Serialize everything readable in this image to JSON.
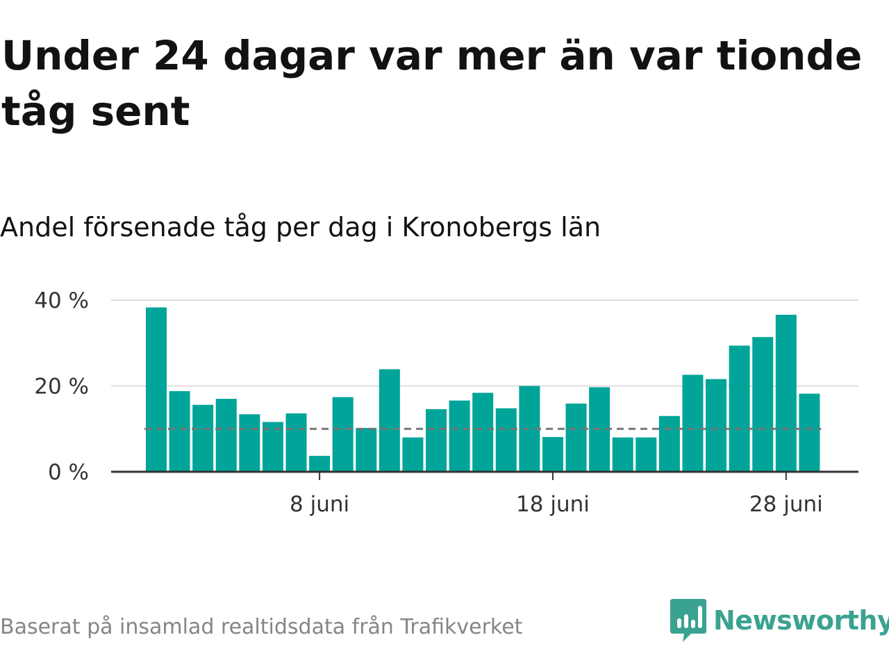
{
  "title": "Under 24 dagar var mer än var tionde tåg sent",
  "subtitle": "Andel försenade tåg per dag i Kronobergs län",
  "footer": {
    "source": "Baserat på insamlad realtidsdata från Trafikverket",
    "logo_text": "Newsworthy",
    "logo_icon": "bar-chart-speech-bubble-icon"
  },
  "colors": {
    "bar": "#00a499",
    "reference_line": "#777777",
    "gridline": "#dddddd",
    "axis": "#333333",
    "logo": "#3aa290"
  },
  "chart_data": {
    "type": "bar",
    "x": [
      "2024-06-01",
      "2024-06-02",
      "2024-06-03",
      "2024-06-04",
      "2024-06-05",
      "2024-06-06",
      "2024-06-07",
      "2024-06-08",
      "2024-06-09",
      "2024-06-10",
      "2024-06-11",
      "2024-06-12",
      "2024-06-13",
      "2024-06-14",
      "2024-06-15",
      "2024-06-16",
      "2024-06-17",
      "2024-06-18",
      "2024-06-19",
      "2024-06-20",
      "2024-06-21",
      "2024-06-22",
      "2024-06-23",
      "2024-06-24",
      "2024-06-25",
      "2024-06-26",
      "2024-06-27",
      "2024-06-28",
      "2024-06-29"
    ],
    "values": [
      38.3,
      18.8,
      15.6,
      17.0,
      13.4,
      11.6,
      13.6,
      3.7,
      17.4,
      10.2,
      23.9,
      8.0,
      14.6,
      16.6,
      18.4,
      14.8,
      20.0,
      8.1,
      15.9,
      19.7,
      8.0,
      8.0,
      13.0,
      22.6,
      21.6,
      29.4,
      31.4,
      36.6,
      18.2
    ],
    "reference_line": 10,
    "ylim": [
      0,
      40
    ],
    "yticks": [
      {
        "value": 0,
        "label": "0 %"
      },
      {
        "value": 20,
        "label": "20 %"
      },
      {
        "value": 40,
        "label": "40 %"
      }
    ],
    "xticks": [
      {
        "date": "2024-06-08",
        "label": "8 juni"
      },
      {
        "date": "2024-06-18",
        "label": "18 juni"
      },
      {
        "date": "2024-06-28",
        "label": "28 juni"
      }
    ],
    "xlabel": "",
    "ylabel": "",
    "grid": true,
    "legend": "none"
  }
}
